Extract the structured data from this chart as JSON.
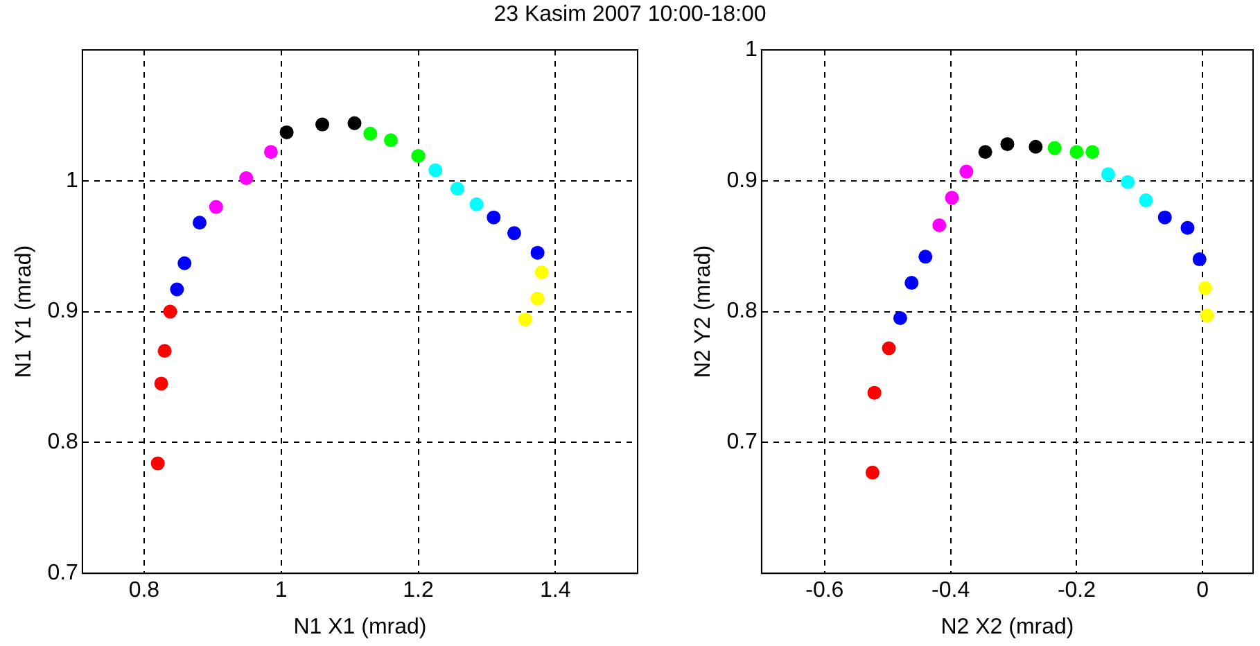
{
  "chart_data": [
    {
      "type": "scatter",
      "title": "23 Kasim 2007 10:00-18:00",
      "xlabel": "N1 X1 (mrad)",
      "ylabel": "N1 Y1 (mrad)",
      "xlim": [
        0.71,
        1.52
      ],
      "ylim": [
        0.7,
        1.1
      ],
      "xticks": [
        0.8,
        1,
        1.2,
        1.4
      ],
      "yticks": [
        0.7,
        0.8,
        0.9,
        1
      ],
      "grid": true,
      "legend": false,
      "marker": "circle",
      "series": [
        {
          "color": "#ff0000",
          "x": [
            0.82,
            0.825,
            0.83,
            0.838
          ],
          "values": [
            0.784,
            0.845,
            0.87,
            0.9
          ]
        },
        {
          "color": "#0000ff",
          "x": [
            0.848,
            0.859,
            0.881
          ],
          "values": [
            0.917,
            0.937,
            0.968
          ]
        },
        {
          "color": "#ff00ff",
          "x": [
            0.905,
            0.949,
            0.985
          ],
          "values": [
            0.98,
            1.002,
            1.022
          ]
        },
        {
          "color": "#000000",
          "x": [
            1.008,
            1.06,
            1.107
          ],
          "values": [
            1.037,
            1.043,
            1.044
          ]
        },
        {
          "color": "#00ff00",
          "x": [
            1.13,
            1.16,
            1.2
          ],
          "values": [
            1.036,
            1.031,
            1.019
          ]
        },
        {
          "color": "#00ffff",
          "x": [
            1.225,
            1.257,
            1.285
          ],
          "values": [
            1.008,
            0.994,
            0.982
          ]
        },
        {
          "color": "#0000ff",
          "x": [
            1.31,
            1.34,
            1.374
          ],
          "values": [
            0.972,
            0.96,
            0.945
          ]
        },
        {
          "color": "#ffff00",
          "x": [
            1.38,
            1.374,
            1.356
          ],
          "values": [
            0.93,
            0.91,
            0.894
          ]
        }
      ]
    },
    {
      "type": "scatter",
      "xlabel": "N2 X2 (mrad)",
      "ylabel": "N2 Y2 (mrad)",
      "xlim": [
        -0.7,
        0.08
      ],
      "ylim": [
        0.6,
        1
      ],
      "xticks": [
        -0.6,
        -0.4,
        -0.2,
        0
      ],
      "yticks": [
        0.7,
        0.8,
        0.9,
        1
      ],
      "grid": true,
      "legend": false,
      "marker": "circle",
      "series": [
        {
          "color": "#ff0000",
          "x": [
            -0.524,
            -0.521,
            -0.498
          ],
          "values": [
            0.677,
            0.738,
            0.772
          ]
        },
        {
          "color": "#0000ff",
          "x": [
            -0.48,
            -0.462,
            -0.44
          ],
          "values": [
            0.795,
            0.822,
            0.842
          ]
        },
        {
          "color": "#ff00ff",
          "x": [
            -0.418,
            -0.398,
            -0.375
          ],
          "values": [
            0.866,
            0.887,
            0.907
          ]
        },
        {
          "color": "#000000",
          "x": [
            -0.345,
            -0.31,
            -0.265
          ],
          "values": [
            0.922,
            0.928,
            0.926
          ]
        },
        {
          "color": "#00ff00",
          "x": [
            -0.235,
            -0.2,
            -0.175
          ],
          "values": [
            0.925,
            0.922,
            0.922
          ]
        },
        {
          "color": "#00ffff",
          "x": [
            -0.15,
            -0.119,
            -0.09
          ],
          "values": [
            0.905,
            0.899,
            0.885
          ]
        },
        {
          "color": "#0000ff",
          "x": [
            -0.06,
            -0.024,
            -0.005
          ],
          "values": [
            0.872,
            0.864,
            0.84
          ]
        },
        {
          "color": "#ffff00",
          "x": [
            0.004,
            0.007
          ],
          "values": [
            0.818,
            0.797
          ]
        }
      ]
    }
  ]
}
